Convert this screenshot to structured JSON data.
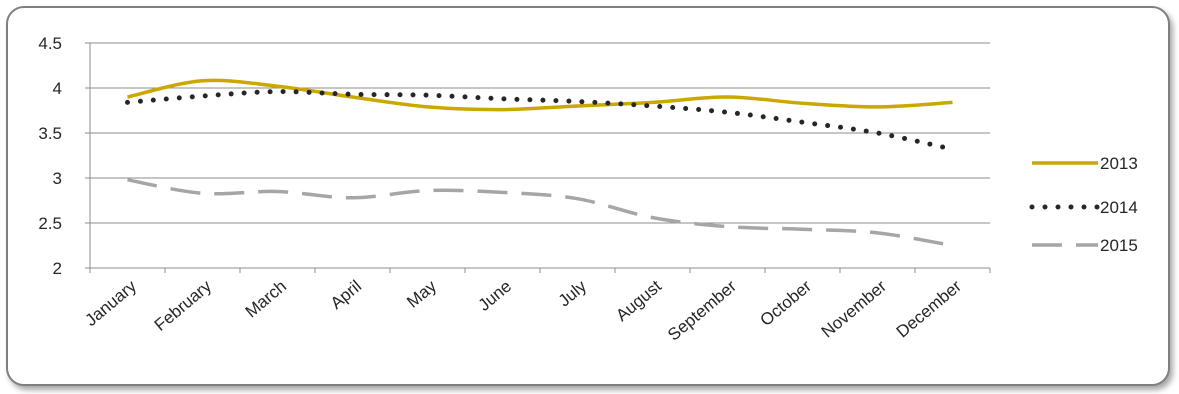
{
  "chart_data": {
    "type": "line",
    "title": "",
    "xlabel": "",
    "ylabel": "",
    "categories": [
      "January",
      "February",
      "March",
      "April",
      "May",
      "June",
      "July",
      "August",
      "September",
      "October",
      "November",
      "December"
    ],
    "ylim": [
      2,
      4.5
    ],
    "yticks": [
      "4.5",
      "4",
      "3.5",
      "3",
      "2.5",
      "2"
    ],
    "grid": "horizontal",
    "legend_position": "right",
    "series": [
      {
        "name": "2013",
        "color": "#c9a800",
        "style": "solid",
        "values": [
          3.9,
          4.08,
          4.02,
          3.9,
          3.79,
          3.76,
          3.8,
          3.84,
          3.9,
          3.83,
          3.79,
          3.84
        ]
      },
      {
        "name": "2014",
        "color": "#262626",
        "style": "dotted",
        "values": [
          3.84,
          3.91,
          3.96,
          3.93,
          3.92,
          3.88,
          3.85,
          3.8,
          3.73,
          3.62,
          3.5,
          3.32
        ]
      },
      {
        "name": "2015",
        "color": "#a6a6a6",
        "style": "dashed",
        "values": [
          2.98,
          2.83,
          2.85,
          2.78,
          2.86,
          2.84,
          2.77,
          2.56,
          2.46,
          2.43,
          2.39,
          2.25
        ]
      }
    ]
  }
}
